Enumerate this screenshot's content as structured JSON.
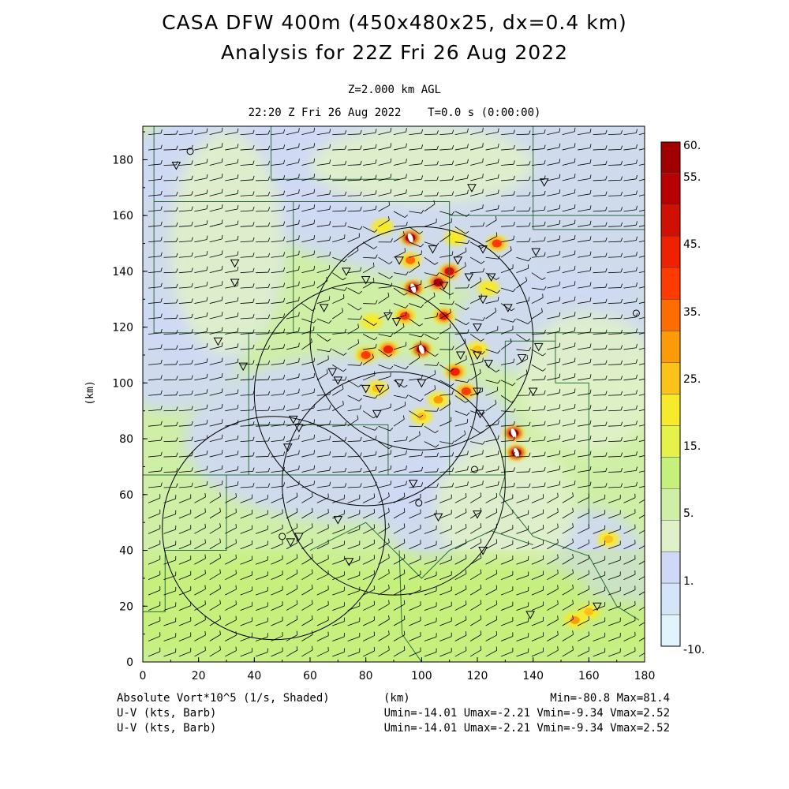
{
  "titles": {
    "line1": "CASA DFW 400m (450x480x25, dx=0.4 km)",
    "line2": "Analysis for 22Z Fri 26 Aug 2022",
    "level": "Z=2.000 km AGL",
    "time": "22:20 Z Fri 26 Aug 2022    T=0.0 s (0:00:00)"
  },
  "footer": {
    "field": "Absolute Vort*10^5 (1/s, Shaded)",
    "xunit": "(km)",
    "minmax": "Min=-80.8 Max=81.4",
    "wind1_label": "U-V (kts, Barb)",
    "wind1_stats": "Umin=-14.01 Umax=-2.21 Vmin=-9.34 Vmax=2.52",
    "wind2_label": "U-V (kts, Barb)",
    "wind2_stats": "Umin=-14.01 Umax=-2.21 Vmin=-9.34 Vmax=2.52"
  },
  "chart_data": {
    "type": "heatmap",
    "xlabel": "(km)",
    "ylabel": "(km)",
    "xlim": [
      0,
      180
    ],
    "ylim": [
      0,
      192
    ],
    "xticks": [
      "0",
      "20",
      "40",
      "60",
      "80",
      "100",
      "120",
      "140",
      "160",
      "180"
    ],
    "yticks": [
      "0",
      "20",
      "40",
      "60",
      "80",
      "100",
      "120",
      "140",
      "160",
      "180"
    ],
    "colorbar": {
      "labels": [
        {
          "text": "60.",
          "value": 60
        },
        {
          "text": "55.",
          "value": 55
        },
        {
          "text": "45.",
          "value": 45
        },
        {
          "text": "35.",
          "value": 35
        },
        {
          "text": "25.",
          "value": 25
        },
        {
          "text": "15.",
          "value": 15
        },
        {
          "text": "5.",
          "value": 5
        },
        {
          "text": "1.",
          "value": 1
        },
        {
          "text": "-10.",
          "value": -10
        }
      ],
      "colors": [
        "#e2f4fb",
        "#d3e5f7",
        "#cfd9f5",
        "#e0f1c9",
        "#cfefa6",
        "#c6f07c",
        "#e5f24a",
        "#f6ea2a",
        "#fdc21a",
        "#fd9a08",
        "#ff6d00",
        "#ff3b00",
        "#ee2200",
        "#d01000",
        "#b80000",
        "#a00000"
      ]
    },
    "radar_rings_km": [
      {
        "x": 100,
        "y": 116,
        "r": 40
      },
      {
        "x": 80,
        "y": 96,
        "r": 40
      },
      {
        "x": 90,
        "y": 64,
        "r": 40
      },
      {
        "x": 47,
        "y": 48,
        "r": 40
      }
    ],
    "vorticity_cores": [
      {
        "x": 96,
        "y": 152,
        "v": 60
      },
      {
        "x": 97,
        "y": 134,
        "v": 60
      },
      {
        "x": 100,
        "y": 112,
        "v": 60
      },
      {
        "x": 106,
        "y": 136,
        "v": 55
      },
      {
        "x": 110,
        "y": 140,
        "v": 50
      },
      {
        "x": 108,
        "y": 124,
        "v": 45
      },
      {
        "x": 112,
        "y": 104,
        "v": 45
      },
      {
        "x": 88,
        "y": 112,
        "v": 45
      },
      {
        "x": 80,
        "y": 110,
        "v": 40
      },
      {
        "x": 94,
        "y": 124,
        "v": 40
      },
      {
        "x": 96,
        "y": 144,
        "v": 35
      },
      {
        "x": 127,
        "y": 150,
        "v": 40
      },
      {
        "x": 133,
        "y": 82,
        "v": 60
      },
      {
        "x": 134,
        "y": 75,
        "v": 60
      },
      {
        "x": 116,
        "y": 97,
        "v": 40
      },
      {
        "x": 106,
        "y": 94,
        "v": 30
      },
      {
        "x": 100,
        "y": 88,
        "v": 25
      },
      {
        "x": 120,
        "y": 112,
        "v": 25
      },
      {
        "x": 84,
        "y": 98,
        "v": 25
      },
      {
        "x": 155,
        "y": 15,
        "v": 30
      },
      {
        "x": 160,
        "y": 18,
        "v": 25
      },
      {
        "x": 167,
        "y": 44,
        "v": 25
      },
      {
        "x": 82,
        "y": 122,
        "v": 20
      },
      {
        "x": 112,
        "y": 152,
        "v": 20
      },
      {
        "x": 86,
        "y": 156,
        "v": 20
      },
      {
        "x": 124,
        "y": 134,
        "v": 20
      }
    ]
  }
}
